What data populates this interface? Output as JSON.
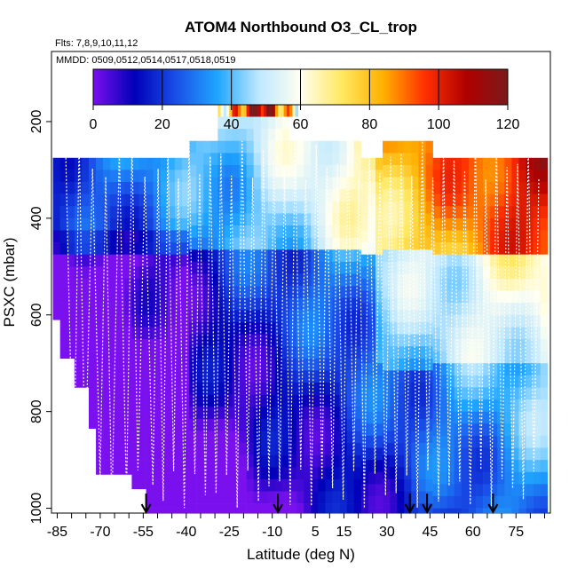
{
  "chart_data": {
    "type": "heatmap",
    "title": "ATOM4 Northbound O3_CL_trop",
    "flights_label": "Flts: 7,8,9,10,11,12",
    "dates_label": "MMDD: 0509,0512,0514,0517,0518,0519",
    "xlabel": "Latitude (deg N)",
    "ylabel": "PSXC (mbar)",
    "xlim": [
      -87,
      87
    ],
    "ylim": [
      1010,
      55
    ],
    "x_ticks": [
      -85,
      -70,
      -55,
      -40,
      -25,
      -10,
      5,
      15,
      30,
      45,
      60,
      75
    ],
    "y_ticks": [
      200,
      400,
      600,
      800,
      1000
    ],
    "colorbar": {
      "min": 0,
      "max": 120,
      "ticks": [
        0,
        20,
        40,
        60,
        80,
        100,
        120
      ],
      "colors": [
        "#7a10ee",
        "#0000b8",
        "#1a4fe8",
        "#1fa6ff",
        "#bfe8ff",
        "#fffff0",
        "#ffe860",
        "#ffb000",
        "#ff3000",
        "#b00000",
        "#7a1a1a"
      ]
    },
    "arrow_latitudes": [
      -54,
      -8,
      38,
      44,
      67
    ]
  }
}
